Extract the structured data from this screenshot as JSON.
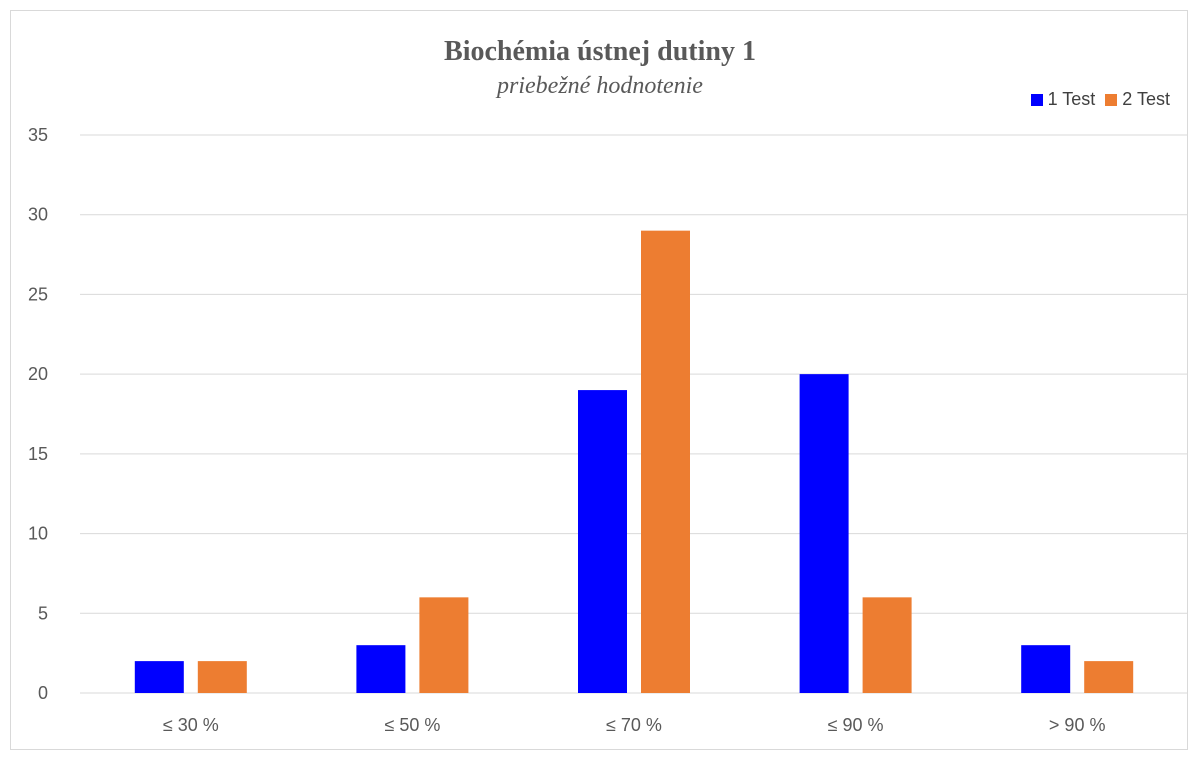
{
  "chart_data": {
    "type": "bar",
    "title": "Biochémia ústnej dutiny 1",
    "subtitle": "priebežné hodnotenie",
    "categories": [
      "≤ 30 %",
      "≤ 50 %",
      "≤ 70 %",
      "≤ 90 %",
      "> 90 %"
    ],
    "series": [
      {
        "name": "1 Test",
        "color": "#0000ff",
        "values": [
          2,
          3,
          19,
          20,
          3
        ]
      },
      {
        "name": "2 Test",
        "color": "#ed7d31",
        "values": [
          2,
          6,
          29,
          6,
          2
        ]
      }
    ],
    "ylim": [
      0,
      35
    ],
    "yticks": [
      0,
      5,
      10,
      15,
      20,
      25,
      30,
      35
    ],
    "grid": true,
    "legend_position": "top-right"
  }
}
